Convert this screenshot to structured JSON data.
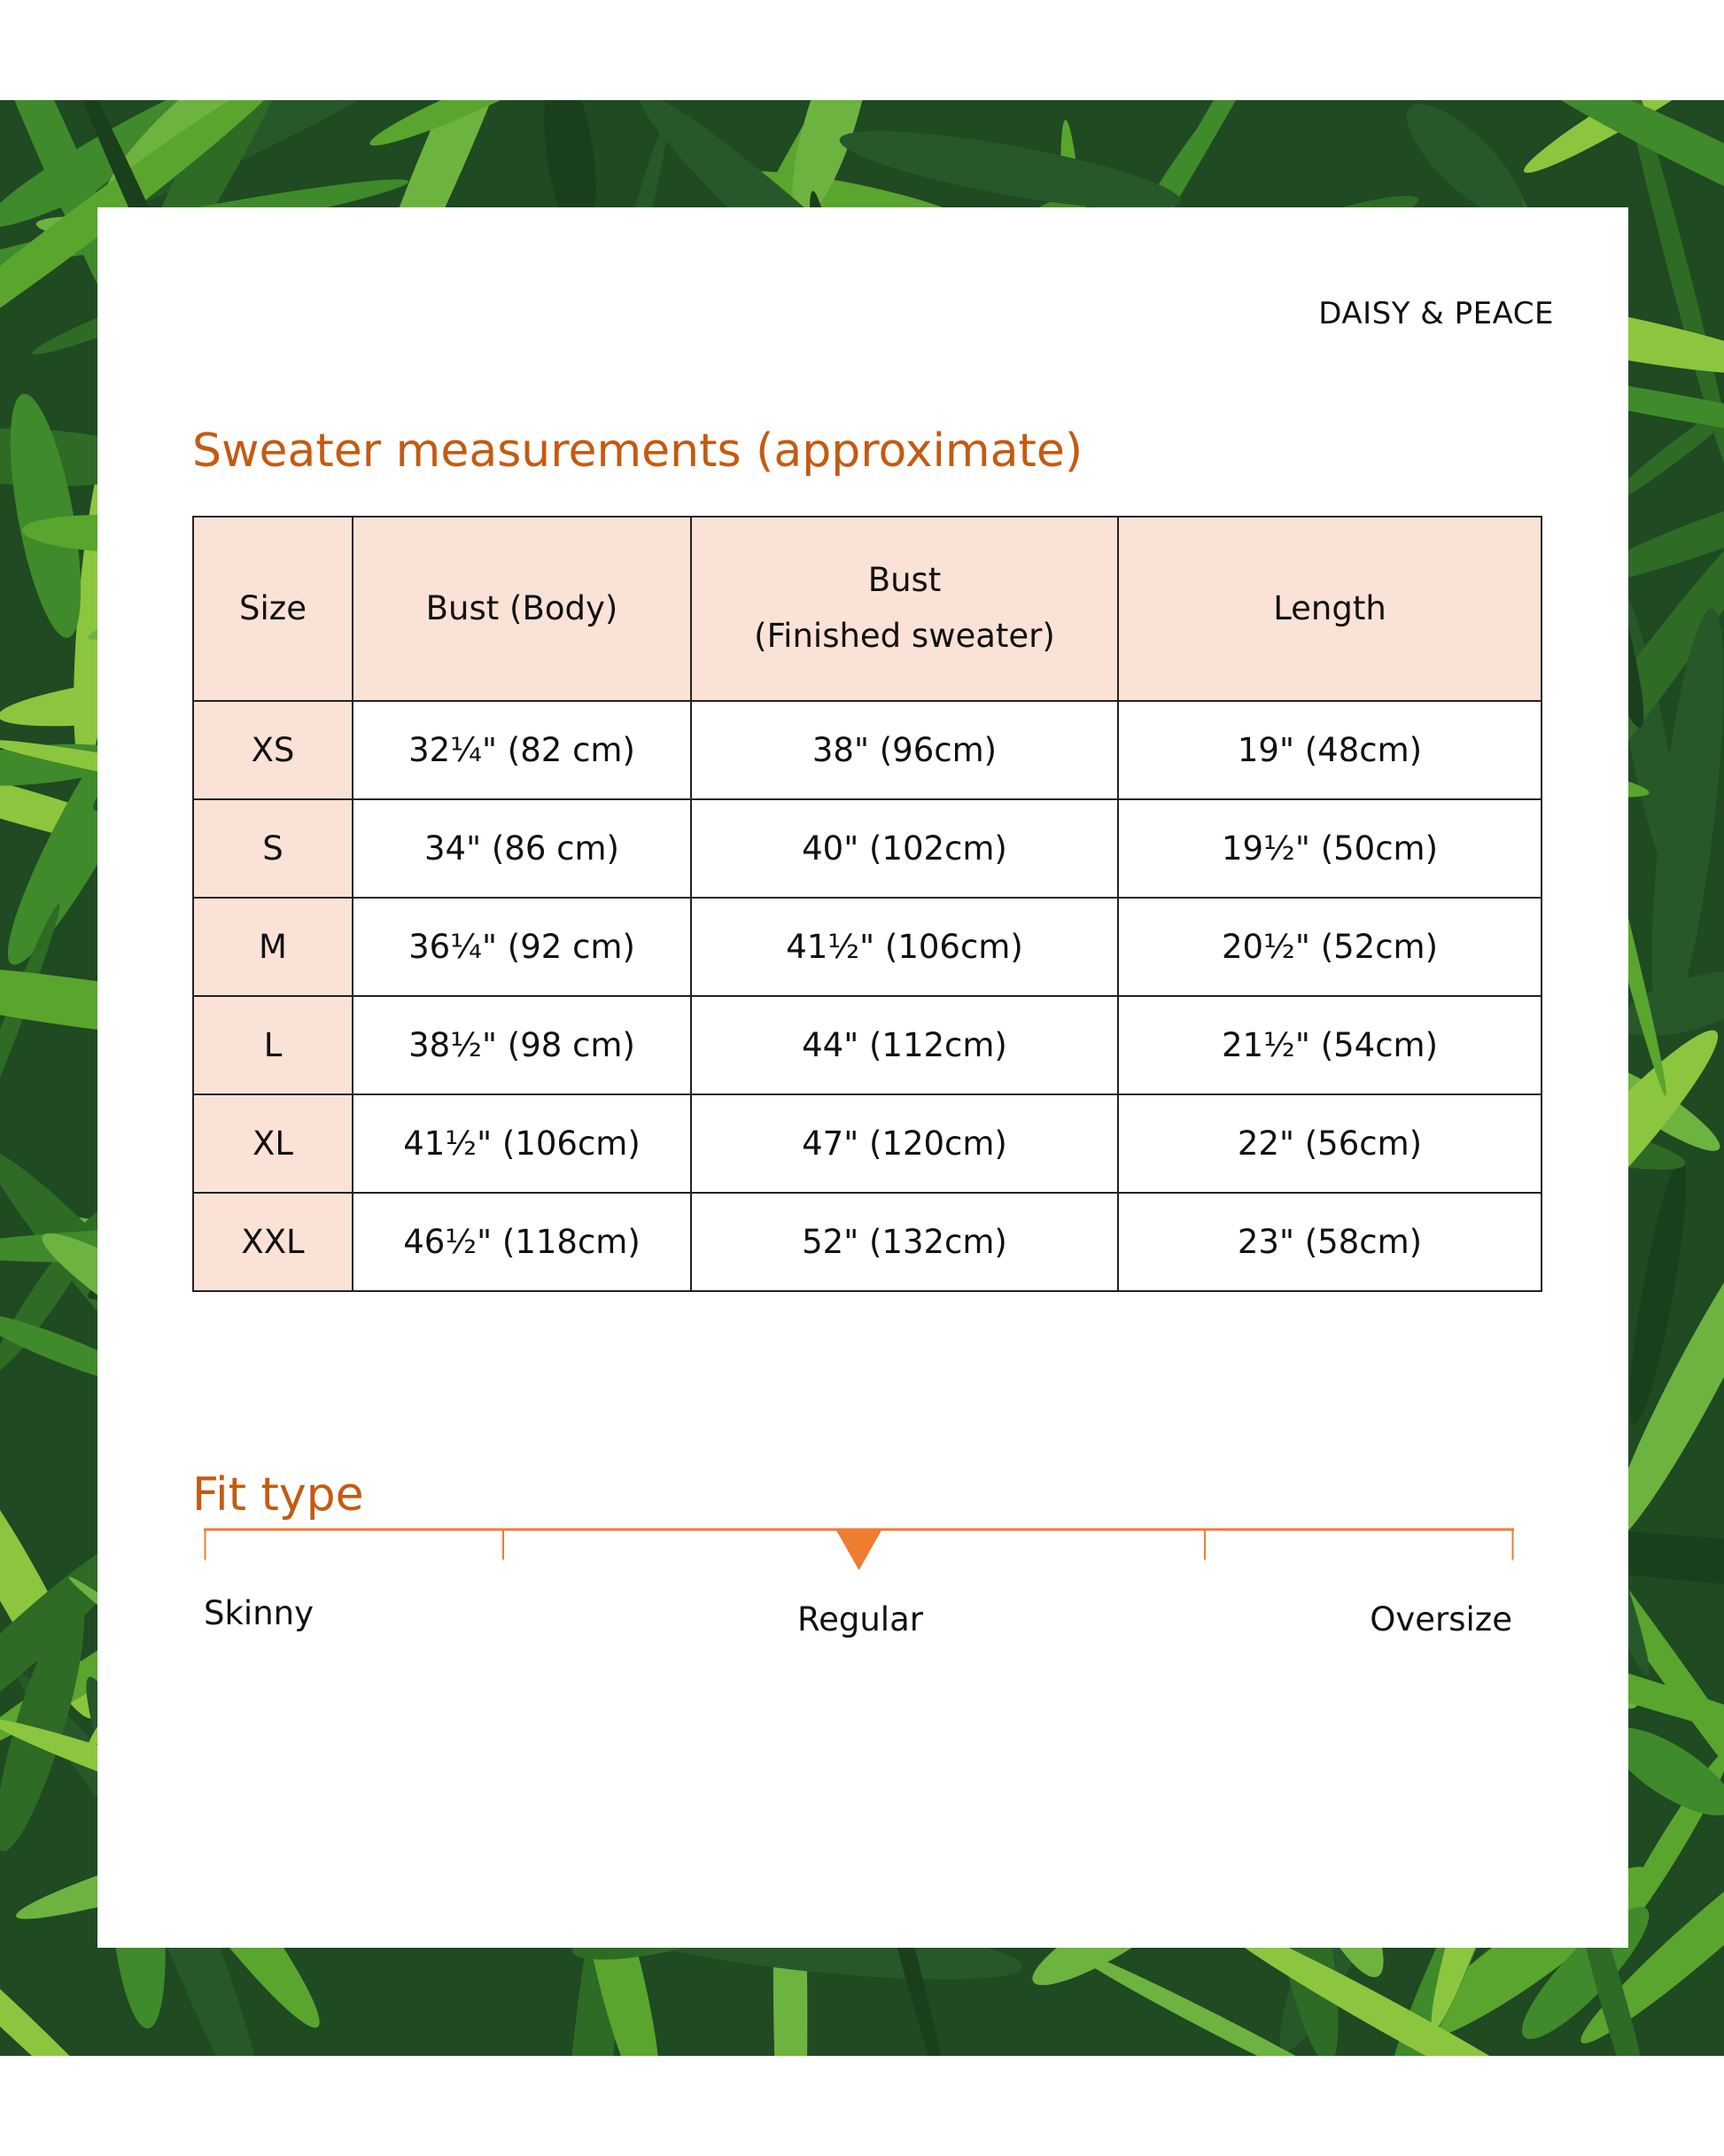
{
  "brand": "DAISY & PEACE",
  "colors": {
    "accent": "#c55a11",
    "header_fill": "#fbe2d6",
    "scale": "#ed7d31",
    "background": "#1f4a22"
  },
  "title": "Sweater measurements (approximate)",
  "table": {
    "headers": [
      "Size",
      "Bust (Body)",
      "Bust",
      "(Finished sweater)",
      "Length"
    ],
    "rows": [
      [
        "XS",
        "32¼\" (82 cm)",
        "38\" (96cm)",
        "19\" (48cm)"
      ],
      [
        "S",
        "34\" (86 cm)",
        "40\" (102cm)",
        "19½\" (50cm)"
      ],
      [
        "M",
        "36¼\" (92 cm)",
        "41½\" (106cm)",
        "20½\" (52cm)"
      ],
      [
        "L",
        "38½\" (98 cm)",
        "44\" (112cm)",
        "21½\" (54cm)"
      ],
      [
        "XL",
        "41½\" (106cm)",
        "47\" (120cm)",
        "22\" (56cm)"
      ],
      [
        "XXL",
        "46½\" (118cm)",
        "52\" (132cm)",
        "23\" (58cm)"
      ]
    ]
  },
  "fit": {
    "title": "Fit type",
    "labels": [
      "Skinny",
      "Regular",
      "Oversize"
    ],
    "marker_position": 0.5
  }
}
